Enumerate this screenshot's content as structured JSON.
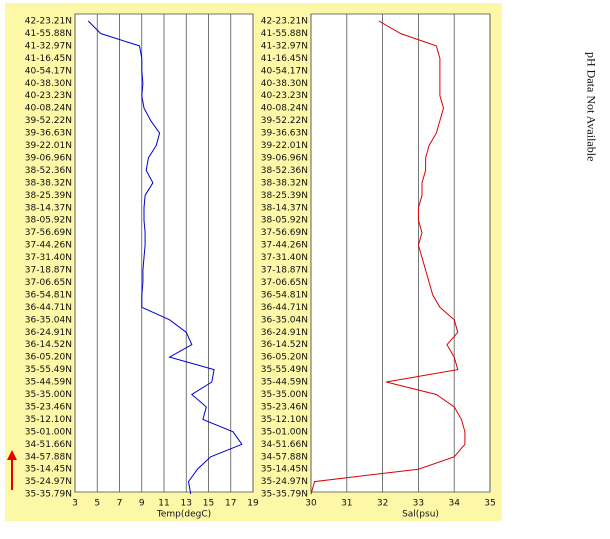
{
  "charts": [
    {
      "chart_data": {
        "type": "line",
        "x_label": "Temp(degC)",
        "color": "#0000cc",
        "xlim": [
          3,
          19
        ],
        "xticks": [
          3,
          5,
          7,
          9,
          11,
          13,
          15,
          17,
          19
        ],
        "grid": true,
        "categories": [
          "42-23.21N",
          "41-55.88N",
          "41-32.97N",
          "41-16.45N",
          "40-54.17N",
          "40-38.30N",
          "40-23.23N",
          "40-08.24N",
          "39-52.22N",
          "39-36.63N",
          "39-22.01N",
          "39-06.96N",
          "38-52.36N",
          "38-38.32N",
          "38-25.39N",
          "38-14.37N",
          "38-05.92N",
          "37-56.69N",
          "37-44.26N",
          "37-31.40N",
          "37-18.87N",
          "37-06.65N",
          "36-54.81N",
          "36-44.71N",
          "36-35.04N",
          "36-24.91N",
          "36-14.52N",
          "36-05.20N",
          "35-55.49N",
          "35-44.59N",
          "35-35.00N",
          "35-23.46N",
          "35-12.10N",
          "35-01.00N",
          "34-51.66N",
          "34-57.88N",
          "35-14.45N",
          "35-24.97N",
          "35-35.79N"
        ],
        "values": [
          4.2,
          5.3,
          8.8,
          9.0,
          9.0,
          9.1,
          9.0,
          9.2,
          9.8,
          10.6,
          10.3,
          9.6,
          9.4,
          10.0,
          9.3,
          9.2,
          9.2,
          9.3,
          9.3,
          9.2,
          9.1,
          9.1,
          9.0,
          9.0,
          11.5,
          13.0,
          13.5,
          11.5,
          15.5,
          15.3,
          13.5,
          14.8,
          14.5,
          17.2,
          18.0,
          15.2,
          14.0,
          13.2,
          13.4
        ]
      }
    },
    {
      "chart_data": {
        "type": "line",
        "x_label": "Sal(psu)",
        "color": "#dd0000",
        "xlim": [
          30,
          35
        ],
        "xticks": [
          30,
          31,
          32,
          33,
          34,
          35
        ],
        "grid": true,
        "categories": [
          "42-23.21N",
          "41-55.88N",
          "41-32.97N",
          "41-16.45N",
          "40-54.17N",
          "40-38.30N",
          "40-23.23N",
          "40-08.24N",
          "39-52.22N",
          "39-36.63N",
          "39-22.01N",
          "39-06.96N",
          "38-52.36N",
          "38-38.32N",
          "38-25.39N",
          "38-14.37N",
          "38-05.92N",
          "37-56.69N",
          "37-44.26N",
          "37-31.40N",
          "37-18.87N",
          "37-06.65N",
          "36-54.81N",
          "36-44.71N",
          "36-35.04N",
          "36-24.91N",
          "36-14.52N",
          "36-05.20N",
          "35-55.49N",
          "35-44.59N",
          "35-35.00N",
          "35-23.46N",
          "35-12.10N",
          "35-01.00N",
          "34-51.66N",
          "34-57.88N",
          "35-14.45N",
          "35-24.97N",
          "35-35.79N"
        ],
        "values": [
          31.9,
          32.5,
          33.5,
          33.6,
          33.6,
          33.6,
          33.6,
          33.7,
          33.6,
          33.5,
          33.3,
          33.2,
          33.2,
          33.1,
          33.1,
          33.0,
          33.0,
          33.1,
          33.0,
          33.1,
          33.2,
          33.3,
          33.4,
          33.6,
          34.0,
          34.1,
          33.8,
          34.0,
          34.1,
          32.1,
          33.5,
          34.0,
          34.2,
          34.3,
          34.3,
          34.0,
          33.0,
          30.1,
          30.0
        ]
      }
    }
  ],
  "note": "pH Data Not Available"
}
